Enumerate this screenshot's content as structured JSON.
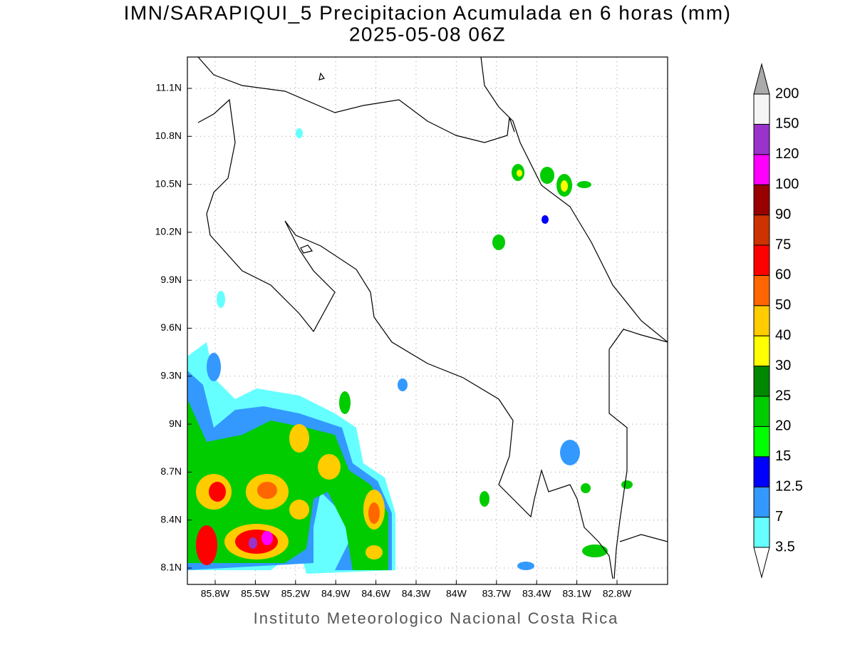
{
  "title": "IMN/SARAPIQUI_5 Precipitacion Acumulada en 6 horas (mm)",
  "subtitle": "2025-05-08 06Z",
  "map": {
    "lon_ticks": [
      "85.8W",
      "85.5W",
      "85.2W",
      "84.9W",
      "84.6W",
      "84.3W",
      "84W",
      "83.7W",
      "83.4W",
      "83.1W",
      "82.8W"
    ],
    "lat_ticks": [
      "11.1N",
      "10.8N",
      "10.5N",
      "10.2N",
      "9.9N",
      "9.6N",
      "9.3N",
      "9N",
      "8.7N",
      "8.4N",
      "8.1N"
    ]
  },
  "colorbar": {
    "levels": [
      3.5,
      7,
      12.5,
      15,
      20,
      25,
      30,
      40,
      50,
      60,
      75,
      90,
      100,
      120,
      150,
      200
    ],
    "colors": [
      "#66ffff",
      "#3399ff",
      "#0000ff",
      "#00ff00",
      "#00cc00",
      "#008800",
      "#ffff00",
      "#ffcc00",
      "#ff6600",
      "#ff0000",
      "#cc3300",
      "#990000",
      "#ff00ff",
      "#9933cc",
      "#f5f5f5"
    ],
    "under_color": "#ffffff",
    "over_color": "#aaaaaa"
  },
  "credit": "Instituto Meteorologico Nacional Costa Rica"
}
